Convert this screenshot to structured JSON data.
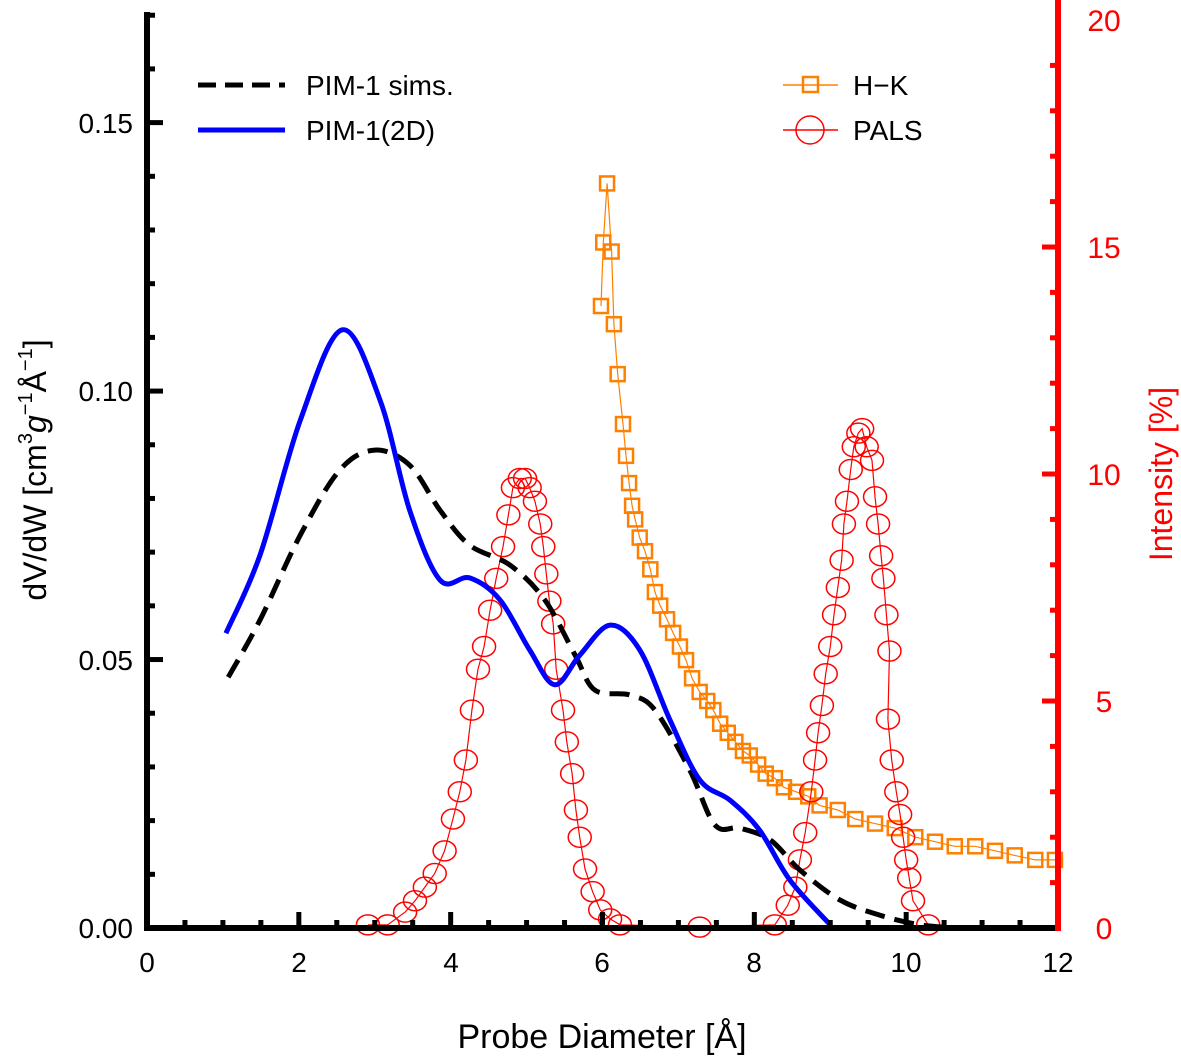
{
  "chart_data": {
    "type": "line",
    "title": "",
    "xlabel": "Probe Diameter [Å]",
    "ylabel": {
      "prefix": "dV/dW [cm",
      "sup1": "3",
      "g": "g",
      "sup2": "−1",
      "A": "Å",
      "sup3": "−1",
      "suffix": "]"
    },
    "ylabel_right": "Intensity [%]",
    "xlim": [
      0,
      12
    ],
    "ylim": [
      0,
      0.1706
    ],
    "ylim_right": [
      0,
      20
    ],
    "xticks": [
      "0",
      "2",
      "4",
      "6",
      "8",
      "10",
      "12"
    ],
    "yticks": [
      "0.00",
      "0.05",
      "0.10",
      "0.15"
    ],
    "yticks_right": [
      "0",
      "5",
      "10",
      "15",
      "20"
    ],
    "colors": {
      "sims": "#000000",
      "twoD": "#0000ff",
      "hk": "#ff8000",
      "pals": "#ff0000",
      "right_axis": "#ff0000"
    },
    "legend": {
      "left": [
        "PIM-1 sims.",
        "PIM-1(2D)"
      ],
      "right": [
        "H−K",
        "PALS"
      ],
      "placement": "top"
    },
    "series": [
      {
        "name": "PIM-1 sims.",
        "axis": "left",
        "style": "dashed",
        "x": [
          1.07,
          1.49,
          2.02,
          2.54,
          3.0,
          3.46,
          3.86,
          4.25,
          4.78,
          5.24,
          5.64,
          5.9,
          6.36,
          6.69,
          7.15,
          7.48,
          7.81,
          8.21,
          8.6,
          9.13,
          9.65,
          10.18,
          10.71
        ],
        "y": [
          0.0467,
          0.0574,
          0.0732,
          0.0853,
          0.089,
          0.0862,
          0.0778,
          0.0713,
          0.0676,
          0.0611,
          0.0508,
          0.0443,
          0.0434,
          0.0406,
          0.0294,
          0.0192,
          0.0186,
          0.0164,
          0.0108,
          0.0052,
          0.0024,
          0.0006,
          0.0
        ]
      },
      {
        "name": "PIM-1(2D)",
        "axis": "left",
        "style": "solid",
        "x": [
          1.04,
          1.49,
          2.02,
          2.57,
          3.07,
          3.46,
          3.86,
          4.25,
          4.65,
          5.04,
          5.37,
          5.7,
          6.1,
          6.49,
          6.89,
          7.28,
          7.68,
          8.07,
          8.47,
          9.0
        ],
        "y": [
          0.0549,
          0.0695,
          0.0946,
          0.1114,
          0.0983,
          0.0778,
          0.0648,
          0.0652,
          0.0611,
          0.0518,
          0.0453,
          0.0508,
          0.0564,
          0.0518,
          0.0387,
          0.0276,
          0.0238,
          0.0182,
          0.0089,
          0.0006
        ]
      },
      {
        "name": "H−K",
        "axis": "right",
        "marker": "square",
        "x": [
          5.98,
          6.01,
          6.06,
          6.12,
          6.15,
          6.2,
          6.27,
          6.31,
          6.35,
          6.39,
          6.43,
          6.49,
          6.56,
          6.63,
          6.69,
          6.76,
          6.85,
          6.93,
          7.02,
          7.1,
          7.18,
          7.28,
          7.38,
          7.46,
          7.55,
          7.65,
          7.75,
          7.85,
          7.94,
          8.05,
          8.15,
          8.27,
          8.39,
          8.55,
          8.71,
          8.86,
          9.1,
          9.33,
          9.59,
          9.85,
          10.12,
          10.38,
          10.64,
          10.91,
          11.17,
          11.43,
          11.7,
          11.96
        ],
        "y": [
          13.7,
          15.1,
          16.4,
          14.9,
          13.3,
          12.2,
          11.1,
          10.4,
          9.8,
          9.3,
          9.0,
          8.6,
          8.3,
          7.9,
          7.4,
          7.1,
          6.8,
          6.5,
          6.2,
          5.9,
          5.5,
          5.2,
          5.0,
          4.8,
          4.5,
          4.3,
          4.1,
          3.9,
          3.8,
          3.6,
          3.4,
          3.3,
          3.1,
          3.0,
          2.9,
          2.7,
          2.6,
          2.4,
          2.3,
          2.2,
          2.0,
          1.9,
          1.8,
          1.8,
          1.7,
          1.6,
          1.5,
          1.5
        ]
      },
      {
        "name": "PALS",
        "axis": "right",
        "marker": "circle",
        "x": [
          2.91,
          3.17,
          3.4,
          3.53,
          3.66,
          3.79,
          3.92,
          4.03,
          4.12,
          4.2,
          4.28,
          4.36,
          4.44,
          4.52,
          4.6,
          4.69,
          4.76,
          4.82,
          4.91,
          4.98,
          5.04,
          5.11,
          5.18,
          5.22,
          5.26,
          5.3,
          5.35,
          5.39,
          5.48,
          5.53,
          5.6,
          5.65,
          5.7,
          5.77,
          5.87,
          5.97,
          6.1,
          6.23,
          7.28,
          8.27,
          8.44,
          8.54,
          8.6,
          8.67,
          8.75,
          8.8,
          8.84,
          8.89,
          8.94,
          9.0,
          9.05,
          9.1,
          9.15,
          9.18,
          9.22,
          9.27,
          9.31,
          9.37,
          9.42,
          9.48,
          9.55,
          9.59,
          9.63,
          9.67,
          9.7,
          9.74,
          9.78,
          9.76,
          9.81,
          9.87,
          9.92,
          9.96,
          10.0,
          10.04,
          10.09,
          10.29
        ],
        "y": [
          0.07,
          0.07,
          0.35,
          0.6,
          0.9,
          1.2,
          1.7,
          2.4,
          3.0,
          3.7,
          4.8,
          5.7,
          6.2,
          7.0,
          7.7,
          8.4,
          9.1,
          9.7,
          9.9,
          9.9,
          9.7,
          9.4,
          8.9,
          8.4,
          7.8,
          7.2,
          6.7,
          5.7,
          4.8,
          4.1,
          3.4,
          2.6,
          2.0,
          1.3,
          0.8,
          0.4,
          0.2,
          0.07,
          0.02,
          0.07,
          0.5,
          0.9,
          1.5,
          2.1,
          3.0,
          3.7,
          4.3,
          4.9,
          5.6,
          6.2,
          6.9,
          7.5,
          8.1,
          8.9,
          9.4,
          10.1,
          10.6,
          10.9,
          11.0,
          10.6,
          10.3,
          9.5,
          8.9,
          8.2,
          7.7,
          6.9,
          6.1,
          4.6,
          3.7,
          3.0,
          2.5,
          2.0,
          1.5,
          1.1,
          0.6,
          0.07
        ]
      }
    ]
  }
}
